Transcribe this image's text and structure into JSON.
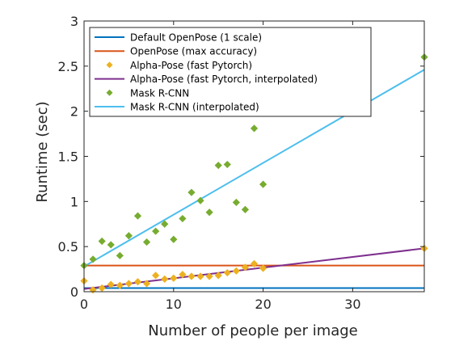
{
  "chart_data": {
    "type": "scatter",
    "title": "",
    "xlabel": "Number of people per image",
    "ylabel": "Runtime (sec)",
    "xlim": [
      0,
      38
    ],
    "ylim": [
      0,
      3
    ],
    "xticks": [
      0,
      10,
      20,
      30
    ],
    "yticks": [
      0,
      0.5,
      1,
      1.5,
      2,
      2.5,
      3
    ],
    "ytick_labels": [
      "0",
      "0.5",
      "1",
      "1.5",
      "2",
      "2.5",
      "3"
    ],
    "grid": false,
    "legend_position": "top-left",
    "series": [
      {
        "name": "Default OpenPose (1 scale)",
        "kind": "line",
        "color": "#0072bd",
        "x": [
          0,
          38
        ],
        "y": [
          0.04,
          0.04
        ]
      },
      {
        "name": "OpenPose (max accuracy)",
        "kind": "line",
        "color": "#d95319",
        "x": [
          0,
          38
        ],
        "y": [
          0.29,
          0.29
        ]
      },
      {
        "name": "Alpha-Pose (fast Pytorch)",
        "kind": "points",
        "marker": "diamond",
        "color": "#edb120",
        "x": [
          0,
          1,
          2,
          3,
          4,
          5,
          6,
          7,
          8,
          9,
          10,
          11,
          12,
          13,
          14,
          15,
          16,
          17,
          18,
          19,
          20,
          38
        ],
        "y": [
          0.12,
          0.02,
          0.04,
          0.08,
          0.07,
          0.09,
          0.11,
          0.09,
          0.18,
          0.14,
          0.15,
          0.19,
          0.17,
          0.17,
          0.17,
          0.18,
          0.21,
          0.23,
          0.27,
          0.31,
          0.26,
          0.48
        ]
      },
      {
        "name": "Alpha-Pose (fast Pytorch, interpolated)",
        "kind": "line",
        "color": "#7e2f8e",
        "x": [
          0,
          38
        ],
        "y": [
          0.03,
          0.48
        ]
      },
      {
        "name": "Mask R-CNN",
        "kind": "points",
        "marker": "diamond",
        "color": "#77ac30",
        "x": [
          0,
          1,
          2,
          3,
          4,
          5,
          6,
          7,
          8,
          9,
          10,
          11,
          12,
          13,
          14,
          15,
          16,
          17,
          18,
          19,
          20,
          38
        ],
        "y": [
          0.29,
          0.36,
          0.56,
          0.52,
          0.4,
          0.62,
          0.84,
          0.55,
          0.67,
          0.75,
          0.58,
          0.81,
          1.1,
          1.01,
          0.88,
          1.4,
          1.41,
          0.99,
          0.91,
          1.81,
          1.19,
          2.6
        ]
      },
      {
        "name": "Mask R-CNN (interpolated)",
        "kind": "line",
        "color": "#4dbeee",
        "x": [
          0,
          38
        ],
        "y": [
          0.28,
          2.46
        ]
      }
    ]
  }
}
